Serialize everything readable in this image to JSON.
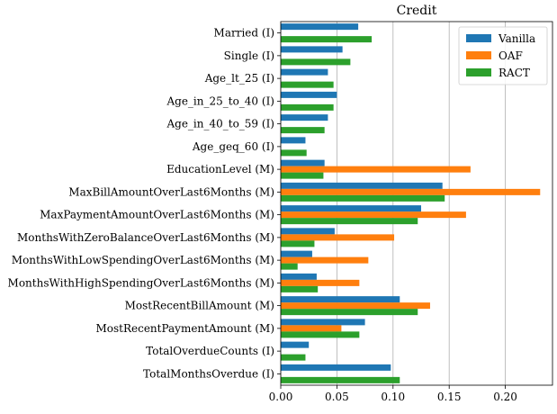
{
  "chart_data": {
    "type": "bar",
    "orientation": "horizontal",
    "title": "Credit",
    "xlabel": "",
    "ylabel": "",
    "xlim": [
      0,
      0.242
    ],
    "xticks": [
      0.0,
      0.05,
      0.1,
      0.15,
      0.2
    ],
    "xtick_labels": [
      "0.00",
      "0.05",
      "0.10",
      "0.15",
      "0.20"
    ],
    "grid": "vertical",
    "legend_position": "top-right",
    "categories": [
      "Married (I)",
      "Single (I)",
      "Age_lt_25 (I)",
      "Age_in_25_to_40 (I)",
      "Age_in_40_to_59 (I)",
      "Age_geq_60 (I)",
      "EducationLevel (M)",
      "MaxBillAmountOverLast6Months (M)",
      "MaxPaymentAmountOverLast6Months (M)",
      "MonthsWithZeroBalanceOverLast6Months (M)",
      "MonthsWithLowSpendingOverLast6Months (M)",
      "MonthsWithHighSpendingOverLast6Months (M)",
      "MostRecentBillAmount (M)",
      "MostRecentPaymentAmount (M)",
      "TotalOverdueCounts (I)",
      "TotalMonthsOverdue (I)"
    ],
    "series": [
      {
        "name": "Vanilla",
        "color": "#1f77b4",
        "values": [
          0.069,
          0.055,
          0.042,
          0.05,
          0.042,
          0.022,
          0.039,
          0.144,
          0.125,
          0.048,
          0.028,
          0.032,
          0.106,
          0.075,
          0.025,
          0.098
        ]
      },
      {
        "name": "OAF",
        "color": "#ff7f0e",
        "values": [
          null,
          null,
          null,
          null,
          null,
          null,
          0.169,
          0.231,
          0.165,
          0.101,
          0.078,
          0.07,
          0.133,
          0.054,
          null,
          null
        ]
      },
      {
        "name": "RACT",
        "color": "#2ca02c",
        "values": [
          0.081,
          0.062,
          0.047,
          0.047,
          0.039,
          0.023,
          0.038,
          0.146,
          0.122,
          0.03,
          0.015,
          0.033,
          0.122,
          0.07,
          0.022,
          0.106
        ]
      }
    ]
  }
}
